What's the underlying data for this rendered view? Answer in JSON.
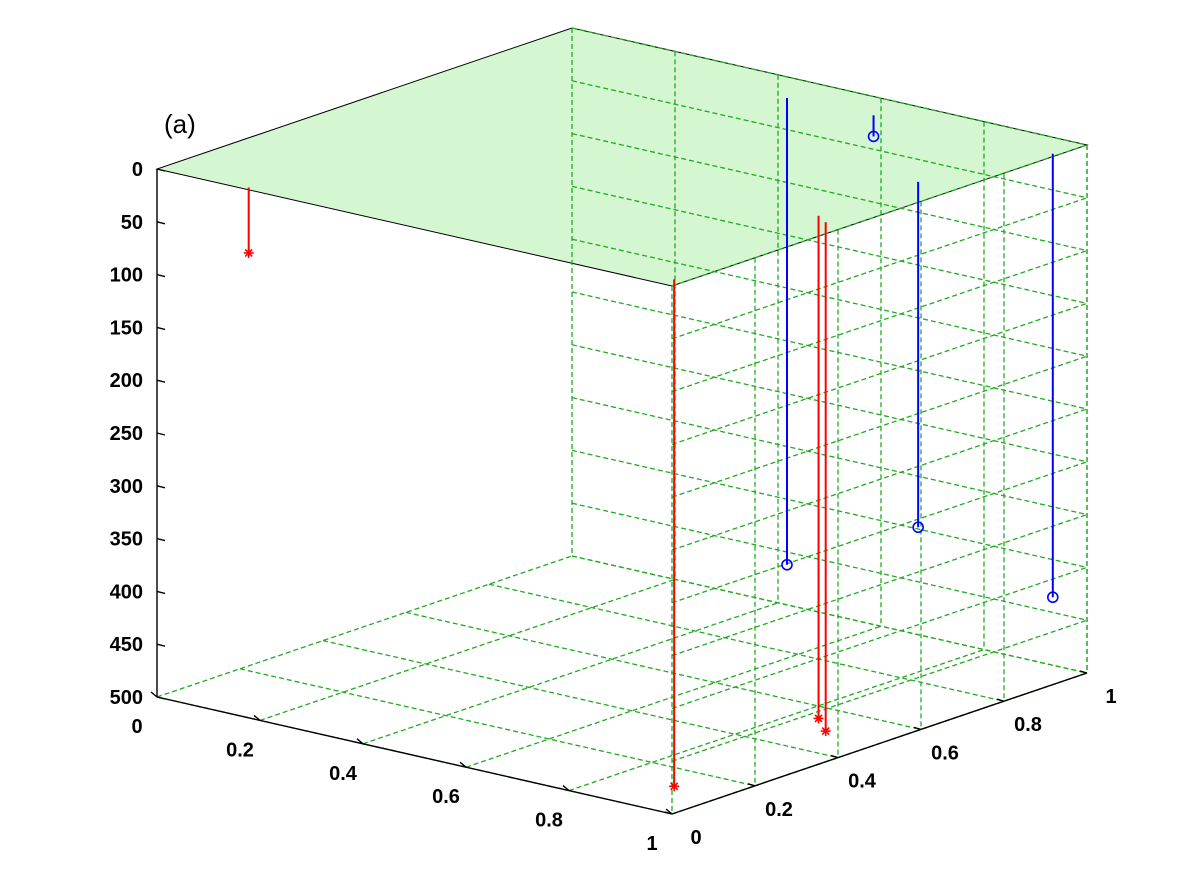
{
  "chart_data": {
    "type": "3d-stem",
    "panel_label": "(a)",
    "x_ticks": [
      0,
      0.2,
      0.4,
      0.6,
      0.8,
      1
    ],
    "y_ticks": [
      0,
      0.2,
      0.4,
      0.6,
      0.8,
      1
    ],
    "z_ticks": [
      0,
      50,
      100,
      150,
      200,
      250,
      300,
      350,
      400,
      450,
      500
    ],
    "xlim": [
      0,
      1
    ],
    "ylim": [
      0,
      1
    ],
    "zlim": [
      0,
      500
    ],
    "z_direction": "reversed",
    "grid": true,
    "surface_plane_z": 0,
    "colors": {
      "grid": "#22aa22",
      "plane_fill": "#ccf5c8",
      "blue": "#0000ff",
      "red": "#ff0000",
      "axis": "#000000"
    },
    "series": [
      {
        "color": "blue",
        "marker": "circle",
        "points": [
          {
            "x": 0.49,
            "y": 0.91,
            "z": 442
          },
          {
            "x": 0.65,
            "y": 0.92,
            "z": 20
          },
          {
            "x": 0.93,
            "y": 0.68,
            "z": 327
          },
          {
            "x": 0.99,
            "y": 0.93,
            "z": 420
          }
        ]
      },
      {
        "color": "red",
        "marker": "asterisk",
        "points": [
          {
            "x": 0.17,
            "y": 0.01,
            "z": 62
          },
          {
            "x": 0.98,
            "y": 0.03,
            "z": 480
          },
          {
            "x": 0.93,
            "y": 0.44,
            "z": 476
          },
          {
            "x": 0.96,
            "y": 0.42,
            "z": 482
          }
        ]
      }
    ]
  }
}
